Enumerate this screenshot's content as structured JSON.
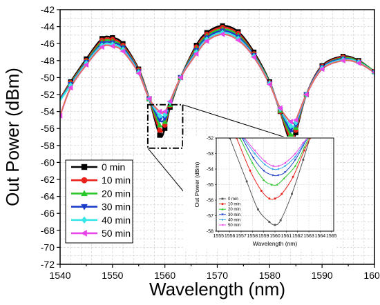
{
  "chart_data": [
    {
      "type": "line",
      "panel": "main",
      "xlabel": "Wavelength (nm)",
      "ylabel": "Out Power (dBm)",
      "xlim": [
        1540,
        1600
      ],
      "ylim": [
        -72,
        -42
      ],
      "xticks": [
        1540,
        1550,
        1560,
        1570,
        1580,
        1590,
        1600
      ],
      "yticks": [
        -72,
        -70,
        -68,
        -66,
        -64,
        -62,
        -60,
        -58,
        -56,
        -54,
        -52,
        -50,
        -48,
        -46,
        -44,
        -42
      ],
      "grid": true,
      "legend_position": "bottom-left",
      "series": [
        {
          "name": "0 min",
          "color": "#000000",
          "marker": "square",
          "points": [
            [
              1540,
              -52.5
            ],
            [
              1542,
              -50.5
            ],
            [
              1545,
              -47.8
            ],
            [
              1548,
              -45.4
            ],
            [
              1550,
              -45.3
            ],
            [
              1552,
              -46.0
            ],
            [
              1555,
              -49.0
            ],
            [
              1557,
              -52.5
            ],
            [
              1559,
              -56.8
            ],
            [
              1560,
              -56.0
            ],
            [
              1561,
              -53.5
            ],
            [
              1563,
              -50.0
            ],
            [
              1566,
              -46.2
            ],
            [
              1568,
              -44.7
            ],
            [
              1571,
              -43.9
            ],
            [
              1574,
              -44.6
            ],
            [
              1577,
              -47.0
            ],
            [
              1580,
              -50.5
            ],
            [
              1582,
              -54.0
            ],
            [
              1584,
              -57.7
            ],
            [
              1585,
              -56.5
            ],
            [
              1587,
              -52.0
            ],
            [
              1590,
              -48.6
            ],
            [
              1594,
              -47.5
            ],
            [
              1597,
              -48.0
            ],
            [
              1600,
              -49.3
            ]
          ]
        },
        {
          "name": "10 min",
          "color": "#e8211a",
          "marker": "circle",
          "points": [
            [
              1540,
              -52.5
            ],
            [
              1542,
              -50.6
            ],
            [
              1545,
              -48.0
            ],
            [
              1548,
              -45.6
            ],
            [
              1550,
              -45.5
            ],
            [
              1552,
              -46.2
            ],
            [
              1555,
              -49.1
            ],
            [
              1557,
              -52.5
            ],
            [
              1559,
              -56.2
            ],
            [
              1560,
              -55.6
            ],
            [
              1561,
              -53.3
            ],
            [
              1563,
              -50.0
            ],
            [
              1566,
              -46.4
            ],
            [
              1568,
              -44.9
            ],
            [
              1571,
              -44.1
            ],
            [
              1574,
              -44.8
            ],
            [
              1577,
              -47.2
            ],
            [
              1580,
              -50.6
            ],
            [
              1582,
              -54.0
            ],
            [
              1584,
              -57.2
            ],
            [
              1585,
              -56.2
            ],
            [
              1587,
              -52.0
            ],
            [
              1590,
              -48.7
            ],
            [
              1594,
              -47.6
            ],
            [
              1597,
              -48.1
            ],
            [
              1600,
              -49.3
            ]
          ]
        },
        {
          "name": "20 min",
          "color": "#29c729",
          "marker": "triangle-up",
          "points": [
            [
              1540,
              -52.6
            ],
            [
              1542,
              -50.7
            ],
            [
              1545,
              -48.1
            ],
            [
              1548,
              -45.8
            ],
            [
              1550,
              -45.7
            ],
            [
              1552,
              -46.4
            ],
            [
              1555,
              -49.2
            ],
            [
              1557,
              -52.5
            ],
            [
              1559,
              -55.6
            ],
            [
              1560,
              -55.2
            ],
            [
              1561,
              -53.2
            ],
            [
              1563,
              -50.0
            ],
            [
              1566,
              -46.6
            ],
            [
              1568,
              -45.1
            ],
            [
              1571,
              -44.3
            ],
            [
              1574,
              -45.0
            ],
            [
              1577,
              -47.3
            ],
            [
              1580,
              -50.6
            ],
            [
              1582,
              -53.9
            ],
            [
              1584,
              -56.7
            ],
            [
              1585,
              -55.9
            ],
            [
              1587,
              -52.0
            ],
            [
              1590,
              -48.8
            ],
            [
              1594,
              -47.7
            ],
            [
              1597,
              -48.1
            ],
            [
              1600,
              -49.3
            ]
          ]
        },
        {
          "name": "30 min",
          "color": "#1a3cc8",
          "marker": "triangle-down",
          "points": [
            [
              1540,
              -52.6
            ],
            [
              1542,
              -50.8
            ],
            [
              1545,
              -48.2
            ],
            [
              1548,
              -46.0
            ],
            [
              1550,
              -45.9
            ],
            [
              1552,
              -46.5
            ],
            [
              1555,
              -49.3
            ],
            [
              1557,
              -52.5
            ],
            [
              1559,
              -55.0
            ],
            [
              1560,
              -54.8
            ],
            [
              1561,
              -53.0
            ],
            [
              1563,
              -50.0
            ],
            [
              1566,
              -46.8
            ],
            [
              1568,
              -45.3
            ],
            [
              1571,
              -44.5
            ],
            [
              1574,
              -45.2
            ],
            [
              1577,
              -47.4
            ],
            [
              1580,
              -50.7
            ],
            [
              1582,
              -53.8
            ],
            [
              1584,
              -56.2
            ],
            [
              1585,
              -55.6
            ],
            [
              1587,
              -52.0
            ],
            [
              1590,
              -48.8
            ],
            [
              1594,
              -47.8
            ],
            [
              1597,
              -48.2
            ],
            [
              1600,
              -49.4
            ]
          ]
        },
        {
          "name": "40 min",
          "color": "#39e6e6",
          "marker": "diamond",
          "points": [
            [
              1540,
              -52.7
            ],
            [
              1542,
              -50.9
            ],
            [
              1545,
              -48.3
            ],
            [
              1548,
              -46.2
            ],
            [
              1550,
              -46.1
            ],
            [
              1552,
              -46.7
            ],
            [
              1555,
              -49.4
            ],
            [
              1557,
              -52.5
            ],
            [
              1559,
              -54.5
            ],
            [
              1560,
              -54.4
            ],
            [
              1561,
              -52.9
            ],
            [
              1563,
              -50.0
            ],
            [
              1566,
              -47.0
            ],
            [
              1568,
              -45.5
            ],
            [
              1571,
              -44.7
            ],
            [
              1574,
              -45.4
            ],
            [
              1577,
              -47.5
            ],
            [
              1580,
              -50.7
            ],
            [
              1582,
              -53.7
            ],
            [
              1584,
              -55.7
            ],
            [
              1585,
              -55.3
            ],
            [
              1587,
              -52.0
            ],
            [
              1590,
              -48.9
            ],
            [
              1594,
              -47.9
            ],
            [
              1597,
              -48.2
            ],
            [
              1600,
              -49.4
            ]
          ]
        },
        {
          "name": "50 min",
          "color": "#e844e8",
          "marker": "triangle-left",
          "points": [
            [
              1540,
              -54.5
            ],
            [
              1542,
              -51.2
            ],
            [
              1545,
              -48.5
            ],
            [
              1548,
              -46.4
            ],
            [
              1550,
              -46.3
            ],
            [
              1552,
              -46.9
            ],
            [
              1555,
              -49.5
            ],
            [
              1557,
              -52.5
            ],
            [
              1559,
              -54.0
            ],
            [
              1560,
              -54.0
            ],
            [
              1561,
              -52.8
            ],
            [
              1563,
              -50.0
            ],
            [
              1566,
              -47.2
            ],
            [
              1568,
              -45.7
            ],
            [
              1571,
              -44.9
            ],
            [
              1574,
              -45.6
            ],
            [
              1577,
              -47.6
            ],
            [
              1580,
              -50.8
            ],
            [
              1582,
              -53.6
            ],
            [
              1584,
              -55.2
            ],
            [
              1585,
              -55.0
            ],
            [
              1587,
              -52.0
            ],
            [
              1590,
              -49.0
            ],
            [
              1594,
              -48.0
            ],
            [
              1597,
              -48.3
            ],
            [
              1600,
              -49.4
            ]
          ]
        }
      ],
      "line_color": "#d98a2b",
      "zoom_box": {
        "x": [
          1557,
          1563
        ],
        "y": [
          -58,
          -53.2
        ]
      }
    },
    {
      "type": "line",
      "panel": "inset",
      "xlabel": "Wavelength (nm)",
      "ylabel": "Out Power (dBm)",
      "xlim": [
        1554.8,
        1565.2
      ],
      "ylim": [
        -58,
        -52
      ],
      "xticks": [
        1555,
        1556,
        1557,
        1558,
        1559,
        1560,
        1561,
        1562,
        1563,
        1564,
        1565
      ],
      "yticks": [
        -58,
        -57,
        -56,
        -55,
        -54,
        -53,
        -52
      ],
      "grid": true,
      "legend_position": "bottom-left",
      "series": [
        {
          "name": "0 min",
          "color": "#555555",
          "points": [
            [
              1556,
              -52.0
            ],
            [
              1557.5,
              -54.8
            ],
            [
              1558.5,
              -56.6
            ],
            [
              1559.5,
              -57.4
            ],
            [
              1560,
              -57.6
            ],
            [
              1560.5,
              -57.3
            ],
            [
              1561.5,
              -55.6
            ],
            [
              1562.5,
              -53.4
            ],
            [
              1563.1,
              -52.0
            ]
          ]
        },
        {
          "name": "10 min",
          "color": "#e8211a",
          "points": [
            [
              1556.6,
              -52.0
            ],
            [
              1557.8,
              -54.1
            ],
            [
              1558.8,
              -55.4
            ],
            [
              1559.5,
              -55.9
            ],
            [
              1560,
              -55.9
            ],
            [
              1560.6,
              -55.6
            ],
            [
              1561.6,
              -54.5
            ],
            [
              1562.6,
              -52.8
            ],
            [
              1563.1,
              -52.0
            ]
          ]
        },
        {
          "name": "20 min",
          "color": "#29c729",
          "points": [
            [
              1556.9,
              -52.0
            ],
            [
              1558.0,
              -53.6
            ],
            [
              1559.0,
              -54.7
            ],
            [
              1559.7,
              -55.0
            ],
            [
              1560.2,
              -55.0
            ],
            [
              1560.8,
              -54.6
            ],
            [
              1561.8,
              -53.8
            ],
            [
              1562.6,
              -52.6
            ],
            [
              1563.0,
              -52.0
            ]
          ]
        },
        {
          "name": "30 min",
          "color": "#1a3cc8",
          "points": [
            [
              1557.1,
              -52.0
            ],
            [
              1558.1,
              -53.3
            ],
            [
              1559.0,
              -54.1
            ],
            [
              1559.8,
              -54.4
            ],
            [
              1560.3,
              -54.4
            ],
            [
              1560.9,
              -54.2
            ],
            [
              1561.8,
              -53.4
            ],
            [
              1562.5,
              -52.5
            ],
            [
              1562.9,
              -52.0
            ]
          ]
        },
        {
          "name": "40 min",
          "color": "#39a8e6",
          "points": [
            [
              1557.2,
              -52.0
            ],
            [
              1558.2,
              -53.0
            ],
            [
              1559.1,
              -53.7
            ],
            [
              1559.8,
              -54.0
            ],
            [
              1560.3,
              -54.0
            ],
            [
              1560.9,
              -53.8
            ],
            [
              1561.8,
              -53.2
            ],
            [
              1562.5,
              -52.4
            ],
            [
              1562.9,
              -52.0
            ]
          ]
        },
        {
          "name": "50 min",
          "color": "#e844e8",
          "points": [
            [
              1557.3,
              -52.0
            ],
            [
              1558.2,
              -52.8
            ],
            [
              1559.1,
              -53.5
            ],
            [
              1559.8,
              -53.8
            ],
            [
              1560.3,
              -53.8
            ],
            [
              1560.9,
              -53.6
            ],
            [
              1561.8,
              -53.0
            ],
            [
              1562.5,
              -52.3
            ],
            [
              1562.9,
              -52.0
            ]
          ]
        }
      ]
    }
  ]
}
